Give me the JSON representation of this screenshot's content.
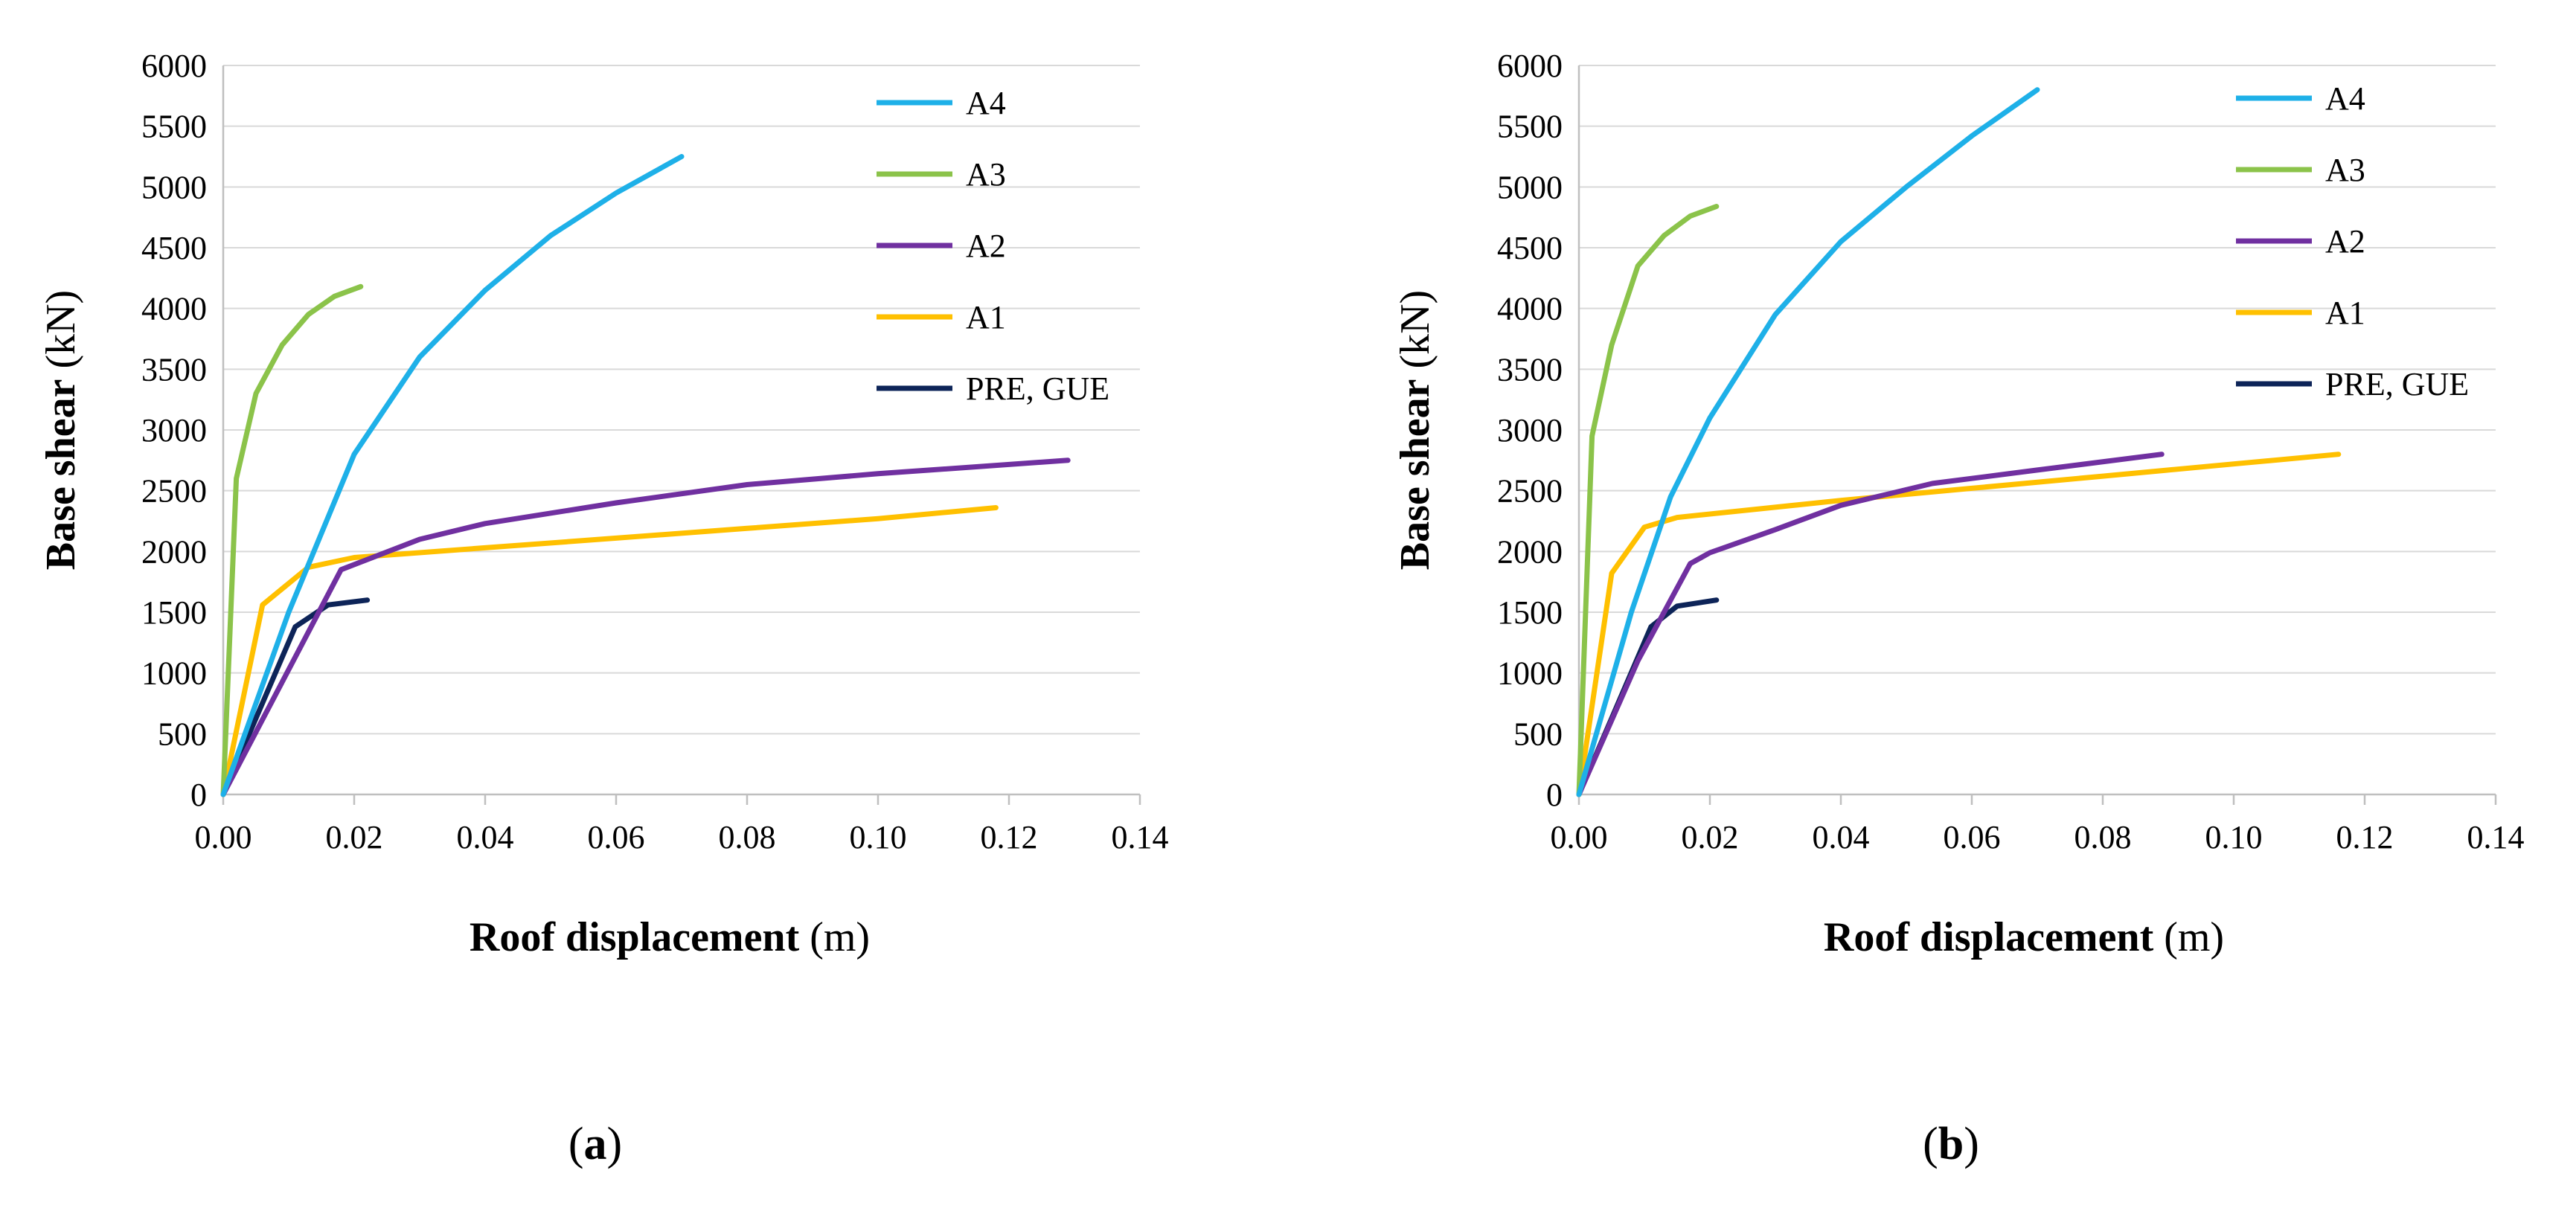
{
  "chart_data": [
    {
      "type": "line",
      "panel_label": "a",
      "title": "",
      "xlabel_bold": "Roof displacement",
      "xlabel_unit": "(m)",
      "ylabel_bold": "Base shear",
      "ylabel_unit": "(kN)",
      "xlim": [
        0,
        0.14
      ],
      "ylim": [
        0,
        6000
      ],
      "xticks": [
        "0.00",
        "0.02",
        "0.04",
        "0.06",
        "0.08",
        "0.10",
        "0.12",
        "0.14"
      ],
      "yticks": [
        "0",
        "500",
        "1000",
        "1500",
        "2000",
        "2500",
        "3000",
        "3500",
        "4000",
        "4500",
        "5000",
        "5500",
        "6000"
      ],
      "grid": "horizontal",
      "legend_position": "right",
      "series": [
        {
          "name": "A4",
          "color": "#1EB0E8",
          "points": [
            [
              0,
              0
            ],
            [
              0.01,
              1500
            ],
            [
              0.02,
              2800
            ],
            [
              0.03,
              3600
            ],
            [
              0.04,
              4150
            ],
            [
              0.05,
              4600
            ],
            [
              0.06,
              4950
            ],
            [
              0.07,
              5250
            ]
          ]
        },
        {
          "name": "A3",
          "color": "#8BC34A",
          "points": [
            [
              0,
              0
            ],
            [
              0.002,
              2600
            ],
            [
              0.005,
              3300
            ],
            [
              0.009,
              3700
            ],
            [
              0.013,
              3950
            ],
            [
              0.017,
              4100
            ],
            [
              0.021,
              4180
            ]
          ]
        },
        {
          "name": "A2",
          "color": "#7030A0",
          "points": [
            [
              0,
              0
            ],
            [
              0.018,
              1850
            ],
            [
              0.03,
              2100
            ],
            [
              0.04,
              2230
            ],
            [
              0.06,
              2400
            ],
            [
              0.08,
              2550
            ],
            [
              0.1,
              2640
            ],
            [
              0.129,
              2750
            ]
          ]
        },
        {
          "name": "A1",
          "color": "#FFC000",
          "points": [
            [
              0,
              0
            ],
            [
              0.006,
              1560
            ],
            [
              0.013,
              1870
            ],
            [
              0.02,
              1950
            ],
            [
              0.04,
              2030
            ],
            [
              0.06,
              2110
            ],
            [
              0.08,
              2190
            ],
            [
              0.1,
              2270
            ],
            [
              0.118,
              2360
            ]
          ]
        },
        {
          "name": "PRE, GUE",
          "color": "#0D2458",
          "points": [
            [
              0,
              0
            ],
            [
              0.011,
              1380
            ],
            [
              0.016,
              1560
            ],
            [
              0.022,
              1600
            ]
          ]
        }
      ]
    },
    {
      "type": "line",
      "panel_label": "b",
      "title": "",
      "xlabel_bold": "Roof displacement",
      "xlabel_unit": "(m)",
      "ylabel_bold": "Base shear",
      "ylabel_unit": "(kN)",
      "xlim": [
        0,
        0.14
      ],
      "ylim": [
        0,
        6000
      ],
      "xticks": [
        "0.00",
        "0.02",
        "0.04",
        "0.06",
        "0.08",
        "0.10",
        "0.12",
        "0.14"
      ],
      "yticks": [
        "0",
        "500",
        "1000",
        "1500",
        "2000",
        "2500",
        "3000",
        "3500",
        "4000",
        "4500",
        "5000",
        "5500",
        "6000"
      ],
      "grid": "horizontal",
      "legend_position": "right",
      "series": [
        {
          "name": "A4",
          "color": "#1EB0E8",
          "points": [
            [
              0,
              0
            ],
            [
              0.008,
              1500
            ],
            [
              0.014,
              2450
            ],
            [
              0.02,
              3100
            ],
            [
              0.03,
              3950
            ],
            [
              0.04,
              4550
            ],
            [
              0.05,
              5000
            ],
            [
              0.06,
              5420
            ],
            [
              0.07,
              5800
            ]
          ]
        },
        {
          "name": "A3",
          "color": "#8BC34A",
          "points": [
            [
              0,
              0
            ],
            [
              0.002,
              2950
            ],
            [
              0.005,
              3700
            ],
            [
              0.009,
              4350
            ],
            [
              0.013,
              4600
            ],
            [
              0.017,
              4760
            ],
            [
              0.021,
              4840
            ]
          ]
        },
        {
          "name": "A2",
          "color": "#7030A0",
          "points": [
            [
              0,
              0
            ],
            [
              0.009,
              1100
            ],
            [
              0.017,
              1900
            ],
            [
              0.02,
              1990
            ],
            [
              0.03,
              2180
            ],
            [
              0.04,
              2380
            ],
            [
              0.054,
              2560
            ],
            [
              0.07,
              2670
            ],
            [
              0.089,
              2800
            ]
          ]
        },
        {
          "name": "A1",
          "color": "#FFC000",
          "points": [
            [
              0,
              0
            ],
            [
              0.005,
              1820
            ],
            [
              0.01,
              2200
            ],
            [
              0.015,
              2280
            ],
            [
              0.04,
              2420
            ],
            [
              0.06,
              2520
            ],
            [
              0.08,
              2620
            ],
            [
              0.1,
              2720
            ],
            [
              0.116,
              2800
            ]
          ]
        },
        {
          "name": "PRE, GUE",
          "color": "#0D2458",
          "points": [
            [
              0,
              0
            ],
            [
              0.011,
              1380
            ],
            [
              0.015,
              1550
            ],
            [
              0.021,
              1600
            ]
          ]
        }
      ]
    }
  ]
}
